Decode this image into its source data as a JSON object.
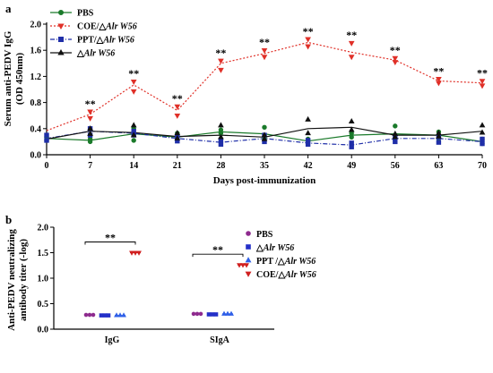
{
  "panels": {
    "a": {
      "letter": "a"
    },
    "b": {
      "letter": "b"
    }
  },
  "significance_mark": "**",
  "colors": {
    "PBS_a": "#1a7a2a",
    "COE_a": "#e03028",
    "PPT_a": "#1f2ea8",
    "dAlr_a": "#111111",
    "PBS_b": "#8e2a8e",
    "dAlr_b": "#2430c8",
    "PPT_b": "#3060e8",
    "COE_b": "#d02020"
  },
  "chart_data": [
    {
      "type": "line",
      "panel": "a",
      "ylabel_line1": "Serum anti-PEDV IgG",
      "ylabel_line2": "(OD 450nm)",
      "xlabel": "Days post-immunization",
      "ylim": [
        0.0,
        2.0
      ],
      "yticks": [
        "0.0",
        "0.4",
        "0.8",
        "1.2",
        "1.6",
        "2.0"
      ],
      "x": [
        0,
        7,
        14,
        21,
        28,
        35,
        42,
        49,
        56,
        63,
        70
      ],
      "xticks": [
        "0",
        "7",
        "14",
        "21",
        "28",
        "35",
        "42",
        "49",
        "56",
        "63",
        "70"
      ],
      "grid": false,
      "legend_position": "top-left",
      "significant_at": [
        7,
        14,
        21,
        28,
        35,
        42,
        49,
        56,
        63,
        70
      ],
      "series": [
        {
          "key": "PBS",
          "name": "PBS",
          "italic_part": "",
          "values": [
            0.25,
            0.22,
            0.32,
            0.27,
            0.35,
            0.32,
            0.21,
            0.3,
            0.32,
            0.3,
            0.2
          ],
          "marker": "circle",
          "dash": "solid",
          "points": [
            [
              0,
              0.22
            ],
            [
              0,
              0.27
            ],
            [
              7,
              0.2
            ],
            [
              7,
              0.24
            ],
            [
              14,
              0.22
            ],
            [
              14,
              0.4
            ],
            [
              21,
              0.23
            ],
            [
              21,
              0.33
            ],
            [
              28,
              0.33
            ],
            [
              28,
              0.38
            ],
            [
              35,
              0.25
            ],
            [
              35,
              0.42
            ],
            [
              42,
              0.18
            ],
            [
              42,
              0.24
            ],
            [
              49,
              0.27
            ],
            [
              49,
              0.33
            ],
            [
              56,
              0.23
            ],
            [
              56,
              0.44
            ],
            [
              63,
              0.25
            ],
            [
              63,
              0.35
            ],
            [
              70,
              0.17
            ],
            [
              70,
              0.24
            ]
          ]
        },
        {
          "key": "COE",
          "name": "COE/△",
          "italic_part": "Alr W56",
          "values": [
            0.37,
            0.62,
            1.07,
            0.68,
            1.4,
            1.55,
            1.72,
            1.57,
            1.45,
            1.13,
            1.1
          ],
          "marker": "triangle-down",
          "dash": "dotted",
          "points": [
            [
              7,
              0.56
            ],
            [
              7,
              0.66
            ],
            [
              14,
              0.97
            ],
            [
              14,
              1.12
            ],
            [
              21,
              0.6
            ],
            [
              21,
              0.74
            ],
            [
              28,
              1.3
            ],
            [
              28,
              1.44
            ],
            [
              35,
              1.5
            ],
            [
              35,
              1.6
            ],
            [
              42,
              1.66
            ],
            [
              42,
              1.77
            ],
            [
              49,
              1.5
            ],
            [
              49,
              1.71
            ],
            [
              56,
              1.42
            ],
            [
              56,
              1.48
            ],
            [
              63,
              1.1
            ],
            [
              63,
              1.16
            ],
            [
              70,
              1.06
            ],
            [
              70,
              1.13
            ]
          ]
        },
        {
          "key": "PPT",
          "name": "PPT/△",
          "italic_part": "Alr W56",
          "values": [
            0.25,
            0.36,
            0.33,
            0.25,
            0.19,
            0.25,
            0.18,
            0.15,
            0.25,
            0.25,
            0.2
          ],
          "marker": "square",
          "dash": "dashdot",
          "points": [
            [
              0,
              0.22
            ],
            [
              0,
              0.3
            ],
            [
              7,
              0.3
            ],
            [
              7,
              0.4
            ],
            [
              14,
              0.3
            ],
            [
              14,
              0.36
            ],
            [
              21,
              0.21
            ],
            [
              21,
              0.28
            ],
            [
              28,
              0.16
            ],
            [
              28,
              0.22
            ],
            [
              35,
              0.2
            ],
            [
              35,
              0.3
            ],
            [
              42,
              0.16
            ],
            [
              42,
              0.22
            ],
            [
              49,
              0.12
            ],
            [
              49,
              0.18
            ],
            [
              56,
              0.2
            ],
            [
              56,
              0.27
            ],
            [
              63,
              0.19
            ],
            [
              63,
              0.27
            ],
            [
              70,
              0.17
            ],
            [
              70,
              0.24
            ]
          ]
        },
        {
          "key": "dAlr",
          "name": "△",
          "italic_part": "Alr W56",
          "values": [
            0.24,
            0.36,
            0.34,
            0.28,
            0.3,
            0.27,
            0.4,
            0.42,
            0.3,
            0.3,
            0.36
          ],
          "marker": "triangle-up",
          "dash": "solid",
          "points": [
            [
              7,
              0.32
            ],
            [
              7,
              0.4
            ],
            [
              14,
              0.3
            ],
            [
              14,
              0.45
            ],
            [
              21,
              0.25
            ],
            [
              21,
              0.33
            ],
            [
              28,
              0.27
            ],
            [
              28,
              0.45
            ],
            [
              35,
              0.24
            ],
            [
              35,
              0.3
            ],
            [
              42,
              0.33
            ],
            [
              42,
              0.54
            ],
            [
              49,
              0.38
            ],
            [
              49,
              0.51
            ],
            [
              56,
              0.27
            ],
            [
              56,
              0.32
            ],
            [
              63,
              0.28
            ],
            [
              63,
              0.33
            ],
            [
              70,
              0.34
            ],
            [
              70,
              0.45
            ]
          ]
        }
      ]
    },
    {
      "type": "scatter",
      "panel": "b",
      "ylabel_line1": "Anti-PEDV neutralizing",
      "ylabel_line2": "antibody titer (-log)",
      "ylim": [
        0.0,
        2.0
      ],
      "yticks": [
        "0.0",
        "0.5",
        "1.0",
        "1.5",
        "2.0"
      ],
      "categories": [
        "IgG",
        "SIgA"
      ],
      "grid": false,
      "legend_position": "top-right",
      "significant_groups": [
        "IgG",
        "SIgA"
      ],
      "series": [
        {
          "key": "PBS",
          "name": "PBS",
          "italic_part": "",
          "marker": "circle",
          "values": [
            0.28,
            0.3
          ]
        },
        {
          "key": "dAlr",
          "name": "△",
          "italic_part": "Alr W56",
          "marker": "square",
          "values": [
            0.27,
            0.29
          ]
        },
        {
          "key": "PPT",
          "name": "PPT /△",
          "italic_part": "Alr W56",
          "marker": "triangle-up",
          "values": [
            0.27,
            0.3
          ]
        },
        {
          "key": "COE",
          "name": "COE/△",
          "italic_part": "Alr W56",
          "marker": "triangle-down",
          "values": [
            1.5,
            1.26
          ]
        }
      ]
    }
  ]
}
